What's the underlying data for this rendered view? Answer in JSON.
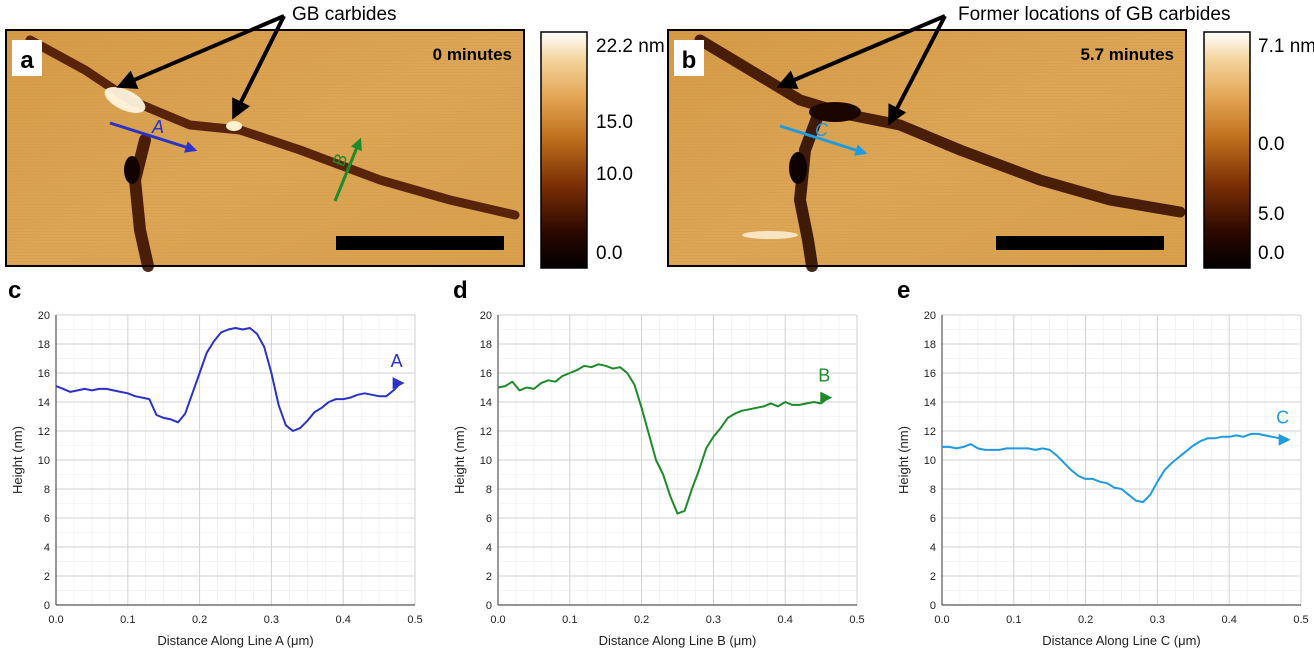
{
  "colors": {
    "line_a": "#2a32c8",
    "line_b": "#1f8a2a",
    "line_c": "#1e9be0",
    "grid": "#d2d2d2",
    "afm_mid": "#d9a24e"
  },
  "panel_a": {
    "letter": "a",
    "time_label": "0 minutes",
    "callout": "GB carbides",
    "line_a_label": "A",
    "line_b_label": "B",
    "colorbar": {
      "max_label": "22.2 nm",
      "ticks": [
        "15.0",
        "10.0",
        "0.0"
      ]
    }
  },
  "panel_b": {
    "letter": "b",
    "time_label": "5.7 minutes",
    "callout": "Former locations of GB carbides",
    "line_c_label": "C",
    "colorbar": {
      "max_label": "7.1 nm",
      "ticks": [
        "0.0",
        "5.0",
        "0.0"
      ]
    }
  },
  "chart_data": [
    {
      "panel": "c",
      "type": "line",
      "series_label": "A",
      "xlabel": "Distance Along Line A (μm)",
      "ylabel": "Height (nm)",
      "xlim": [
        0,
        0.5
      ],
      "ylim": [
        0,
        20
      ],
      "xticks": [
        "0.0",
        "0.1",
        "0.2",
        "0.3",
        "0.4",
        "0.5"
      ],
      "yticks": [
        "0",
        "2",
        "4",
        "6",
        "8",
        "10",
        "12",
        "14",
        "16",
        "18",
        "20"
      ],
      "x": [
        0.0,
        0.01,
        0.02,
        0.03,
        0.04,
        0.05,
        0.06,
        0.07,
        0.08,
        0.09,
        0.1,
        0.11,
        0.12,
        0.13,
        0.14,
        0.15,
        0.16,
        0.17,
        0.18,
        0.19,
        0.2,
        0.21,
        0.22,
        0.23,
        0.24,
        0.25,
        0.26,
        0.27,
        0.28,
        0.29,
        0.3,
        0.31,
        0.32,
        0.33,
        0.34,
        0.35,
        0.36,
        0.37,
        0.38,
        0.39,
        0.4,
        0.41,
        0.42,
        0.43,
        0.44,
        0.45,
        0.46,
        0.47,
        0.48
      ],
      "y": [
        15.1,
        14.9,
        14.7,
        14.8,
        14.9,
        14.8,
        14.9,
        14.9,
        14.8,
        14.7,
        14.6,
        14.4,
        14.3,
        14.2,
        13.1,
        12.9,
        12.8,
        12.6,
        13.2,
        14.6,
        16.0,
        17.4,
        18.2,
        18.8,
        19.0,
        19.1,
        19.0,
        19.1,
        18.7,
        17.8,
        16.0,
        13.8,
        12.4,
        12.0,
        12.2,
        12.7,
        13.3,
        13.6,
        14.0,
        14.2,
        14.2,
        14.3,
        14.5,
        14.6,
        14.5,
        14.4,
        14.4,
        14.8,
        15.3
      ]
    },
    {
      "panel": "d",
      "type": "line",
      "series_label": "B",
      "xlabel": "Distance Along Line B (μm)",
      "ylabel": "Height (nm)",
      "xlim": [
        0,
        0.5
      ],
      "ylim": [
        0,
        20
      ],
      "xticks": [
        "0.0",
        "0.1",
        "0.2",
        "0.3",
        "0.4",
        "0.5"
      ],
      "yticks": [
        "0",
        "2",
        "4",
        "6",
        "8",
        "10",
        "12",
        "14",
        "16",
        "18",
        "20"
      ],
      "x": [
        0.0,
        0.01,
        0.02,
        0.03,
        0.04,
        0.05,
        0.06,
        0.07,
        0.08,
        0.09,
        0.1,
        0.11,
        0.12,
        0.13,
        0.14,
        0.15,
        0.16,
        0.17,
        0.18,
        0.19,
        0.2,
        0.21,
        0.22,
        0.23,
        0.24,
        0.25,
        0.26,
        0.27,
        0.28,
        0.29,
        0.3,
        0.31,
        0.32,
        0.33,
        0.34,
        0.35,
        0.36,
        0.37,
        0.38,
        0.39,
        0.4,
        0.41,
        0.42,
        0.43,
        0.44,
        0.45,
        0.46
      ],
      "y": [
        15.0,
        15.1,
        15.4,
        14.8,
        15.0,
        14.9,
        15.3,
        15.5,
        15.4,
        15.8,
        16.0,
        16.2,
        16.5,
        16.4,
        16.6,
        16.5,
        16.3,
        16.4,
        16.0,
        15.2,
        13.6,
        11.8,
        10.0,
        9.0,
        7.5,
        6.3,
        6.5,
        8.0,
        9.3,
        10.8,
        11.6,
        12.2,
        12.9,
        13.2,
        13.4,
        13.5,
        13.6,
        13.7,
        13.9,
        13.7,
        14.0,
        13.8,
        13.8,
        13.9,
        14.0,
        13.9,
        14.3
      ]
    },
    {
      "panel": "e",
      "type": "line",
      "series_label": "C",
      "xlabel": "Distance Along Line C (μm)",
      "ylabel": "Height (nm)",
      "xlim": [
        0,
        0.5
      ],
      "ylim": [
        0,
        20
      ],
      "xticks": [
        "0.0",
        "0.1",
        "0.2",
        "0.3",
        "0.4",
        "0.5"
      ],
      "yticks": [
        "0",
        "2",
        "4",
        "6",
        "8",
        "10",
        "12",
        "14",
        "16",
        "18",
        "20"
      ],
      "x": [
        0.0,
        0.01,
        0.02,
        0.03,
        0.04,
        0.05,
        0.06,
        0.07,
        0.08,
        0.09,
        0.1,
        0.11,
        0.12,
        0.13,
        0.14,
        0.15,
        0.16,
        0.17,
        0.18,
        0.19,
        0.2,
        0.21,
        0.22,
        0.23,
        0.24,
        0.25,
        0.26,
        0.27,
        0.28,
        0.29,
        0.3,
        0.31,
        0.32,
        0.33,
        0.34,
        0.35,
        0.36,
        0.37,
        0.38,
        0.39,
        0.4,
        0.41,
        0.42,
        0.43,
        0.44,
        0.45,
        0.46,
        0.47,
        0.48
      ],
      "y": [
        10.9,
        10.9,
        10.8,
        10.9,
        11.1,
        10.8,
        10.7,
        10.7,
        10.7,
        10.8,
        10.8,
        10.8,
        10.8,
        10.7,
        10.8,
        10.7,
        10.3,
        9.8,
        9.3,
        8.9,
        8.7,
        8.7,
        8.5,
        8.4,
        8.1,
        8.0,
        7.6,
        7.2,
        7.1,
        7.6,
        8.5,
        9.3,
        9.8,
        10.2,
        10.6,
        11.0,
        11.3,
        11.5,
        11.5,
        11.6,
        11.6,
        11.7,
        11.6,
        11.8,
        11.8,
        11.7,
        11.6,
        11.5,
        11.4
      ]
    }
  ]
}
